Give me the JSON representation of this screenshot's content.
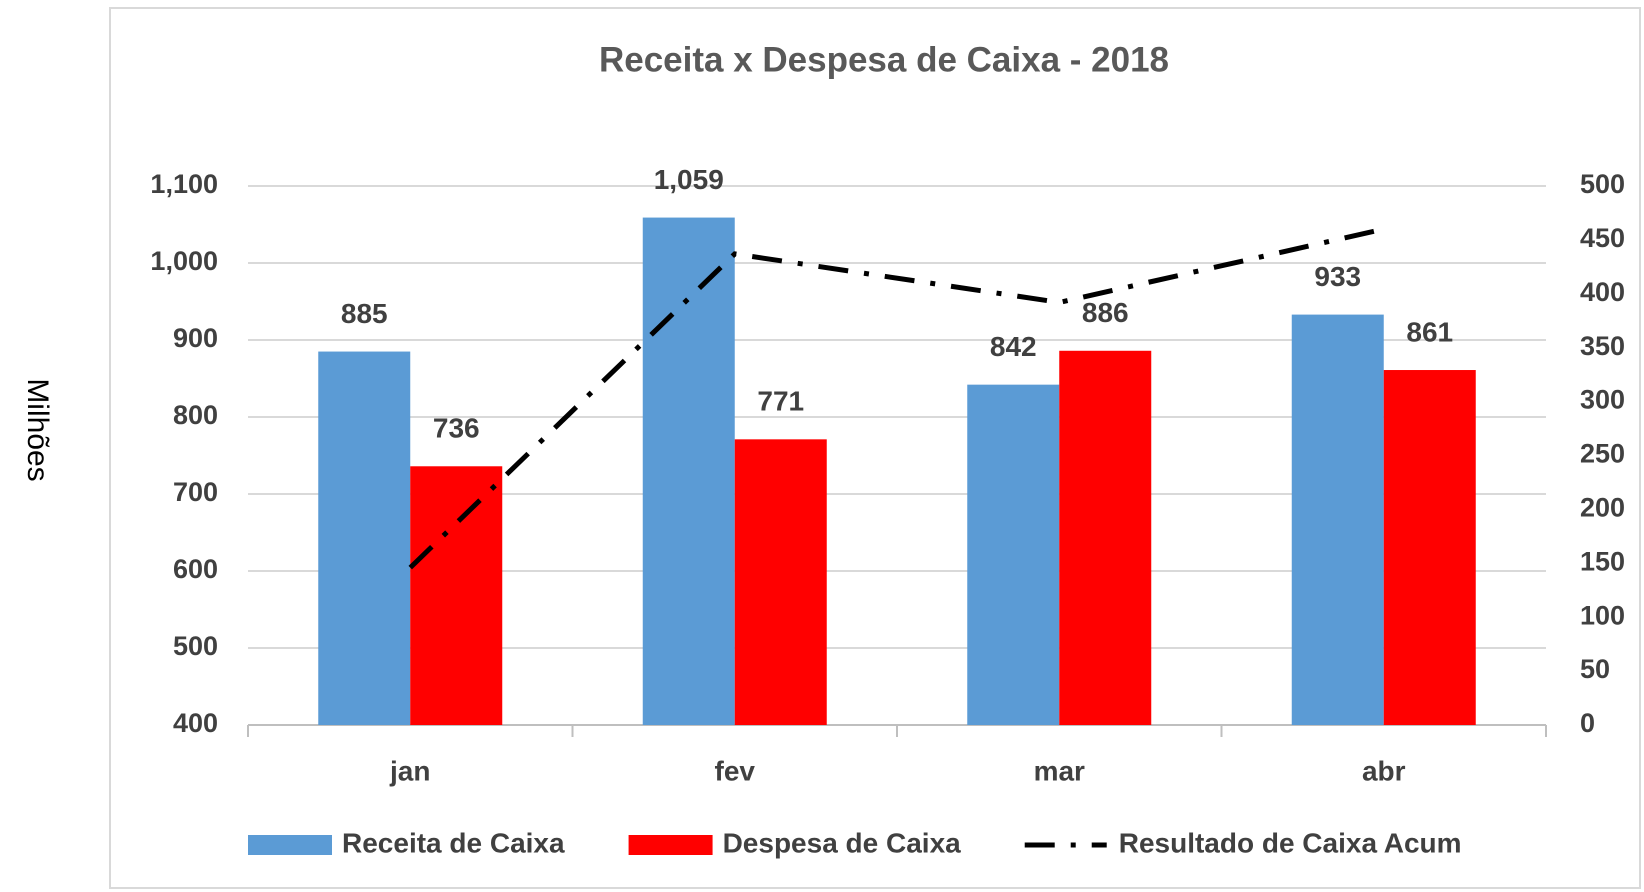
{
  "chart_data": {
    "type": "bar",
    "title": "Receita x Despesa de Caixa - 2018",
    "y_label": "Milhões",
    "categories": [
      "jan",
      "fev",
      "mar",
      "abr"
    ],
    "series": [
      {
        "name": "Receita de Caixa",
        "color": "#5b9bd5",
        "values": [
          885,
          1059,
          842,
          933
        ],
        "value_labels": [
          "885",
          "1,059",
          "842",
          "933"
        ]
      },
      {
        "name": "Despesa de Caixa",
        "color": "#ff0000",
        "values": [
          736,
          771,
          886,
          861
        ]
      },
      {
        "name": "Resultado de Caixa Acum",
        "color": "#000000",
        "type": "line",
        "axis": "y2",
        "values": [
          146,
          437,
          392,
          460
        ]
      }
    ],
    "ylim": [
      400,
      1100
    ],
    "yticks": [
      400,
      500,
      600,
      700,
      800,
      900,
      {
        "value": 1000,
        "label": "1,000"
      },
      {
        "value": 1100,
        "label": "1,100"
      }
    ],
    "y2lim": [
      0,
      500
    ],
    "y2ticks": [
      0,
      50,
      100,
      150,
      200,
      250,
      300,
      350,
      400,
      450,
      500
    ],
    "grid": true,
    "legend": "bottom"
  }
}
